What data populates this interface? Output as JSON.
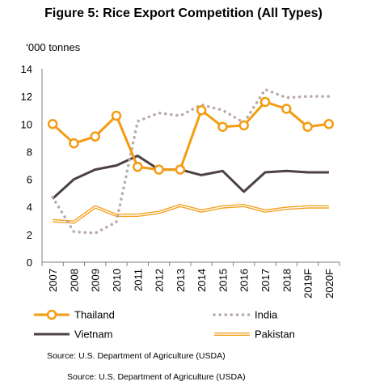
{
  "title": "Figure 5: Rice Export Competition (All Types)",
  "unit_label": "‘000 tonnes",
  "source_1": "Source: U.S. Department of Agriculture (USDA)",
  "source_2": "Source: U.S. Department of Agriculture (USDA)",
  "chart_data": {
    "type": "line",
    "title": "Figure 5: Rice Export Competition (All Types)",
    "ylabel": "‘000 tonnes",
    "xlabel": "",
    "ylim": [
      0,
      14
    ],
    "yticks": [
      0,
      2,
      4,
      6,
      8,
      10,
      12,
      14
    ],
    "grid": false,
    "legend_position": "bottom",
    "categories": [
      "2007",
      "2008",
      "2009",
      "2010",
      "2011",
      "2012",
      "2013",
      "2014",
      "2015",
      "2016",
      "2017",
      "2018",
      "2019F",
      "2020F"
    ],
    "series": [
      {
        "name": "Thailand",
        "color": "#F39C12",
        "style": "solid-markers",
        "values": [
          10.0,
          8.6,
          9.1,
          10.6,
          6.9,
          6.7,
          6.7,
          11.0,
          9.8,
          9.9,
          11.6,
          11.1,
          9.8,
          10.0
        ]
      },
      {
        "name": "India",
        "color": "#B8A9A4",
        "style": "dotted",
        "values": [
          4.7,
          2.2,
          2.1,
          2.9,
          10.2,
          10.8,
          10.6,
          11.4,
          11.0,
          10.1,
          12.5,
          11.9,
          12.0,
          12.0
        ]
      },
      {
        "name": "Vietnam",
        "color": "#4D4141",
        "style": "solid",
        "values": [
          4.6,
          6.0,
          6.7,
          7.0,
          7.7,
          6.7,
          6.7,
          6.3,
          6.6,
          5.1,
          6.5,
          6.6,
          6.5,
          6.5
        ]
      },
      {
        "name": "Pakistan",
        "color": "#F39C12",
        "style": "double",
        "values": [
          3.0,
          2.9,
          4.0,
          3.4,
          3.4,
          3.6,
          4.1,
          3.7,
          4.0,
          4.1,
          3.7,
          3.9,
          4.0,
          4.0
        ]
      }
    ]
  }
}
